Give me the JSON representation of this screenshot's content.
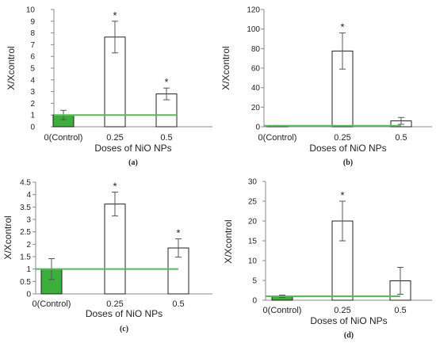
{
  "colors": {
    "control_bar": "#3cae3c",
    "baseline_line": "#5cb85c",
    "bar_fill": "#ffffff",
    "bar_stroke": "#222222",
    "axis": "#888888"
  },
  "chart_data": [
    {
      "panel_label": "(a)",
      "type": "bar",
      "categories": [
        "0(Control)",
        "0.25",
        "0.5"
      ],
      "values": [
        1.0,
        7.65,
        2.8
      ],
      "errors": [
        0.4,
        1.35,
        0.5
      ],
      "significant": [
        false,
        true,
        true
      ],
      "star": "*",
      "baseline": 1,
      "xlabel": "Doses of NiO NPs",
      "ylabel": "X/Xcontrol",
      "ylim": [
        0,
        10
      ],
      "yticks": [
        0,
        1,
        2,
        3,
        4,
        5,
        6,
        7,
        8,
        9,
        10
      ]
    },
    {
      "panel_label": "(b)",
      "type": "bar",
      "categories": [
        "0(Control)",
        "0.25",
        "0.5"
      ],
      "values": [
        1.0,
        77.5,
        6.0
      ],
      "errors": [
        0.3,
        18.5,
        3.5
      ],
      "significant": [
        false,
        true,
        false
      ],
      "star": "*",
      "baseline": 1,
      "xlabel": "Doses of NiO NPs",
      "ylabel": "X/Xcontrol",
      "ylim": [
        0,
        120
      ],
      "yticks": [
        0,
        20,
        40,
        60,
        80,
        100,
        120
      ]
    },
    {
      "panel_label": "(c)",
      "type": "bar",
      "categories": [
        "0(Control)",
        "0.25",
        "0.5"
      ],
      "values": [
        1.0,
        3.62,
        1.85
      ],
      "errors": [
        0.42,
        0.48,
        0.37
      ],
      "significant": [
        false,
        true,
        true
      ],
      "star": "*",
      "baseline": 1,
      "xlabel": "Doses of NiO NPs",
      "ylabel": "X/Xcontrol",
      "ylim": [
        0,
        4.5
      ],
      "yticks": [
        0,
        0.5,
        1,
        1.5,
        2,
        2.5,
        3,
        3.5,
        4,
        4.5
      ]
    },
    {
      "panel_label": "(d)",
      "type": "bar",
      "categories": [
        "0(Control)",
        "0.25",
        "0.5"
      ],
      "values": [
        1.0,
        20.0,
        4.9
      ],
      "errors": [
        0.3,
        5.0,
        3.4
      ],
      "significant": [
        false,
        true,
        false
      ],
      "star": "*",
      "baseline": 1,
      "xlabel": "Doses of NiO NPs",
      "ylabel": "X/Xcontrol",
      "ylim": [
        0,
        30
      ],
      "yticks": [
        0,
        5,
        10,
        15,
        20,
        25,
        30
      ]
    }
  ]
}
